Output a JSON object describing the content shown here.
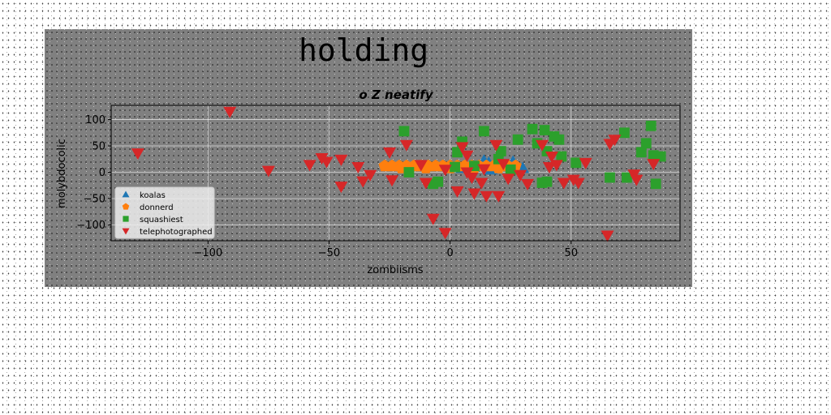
{
  "figure": {
    "suptitle": "holding"
  },
  "chart_data": {
    "type": "scatter",
    "title": "o Z neatify",
    "xlabel": "zombiisms",
    "ylabel": "molybdocolic",
    "xlim": [
      -140,
      95
    ],
    "ylim": [
      -130,
      127
    ],
    "xticks": [
      -100,
      -50,
      0,
      50
    ],
    "yticks": [
      -100,
      -50,
      0,
      50,
      100
    ],
    "grid": true,
    "legend_position": "lower-left",
    "series": [
      {
        "name": "koalas",
        "marker": "triangle-up",
        "color": "#1f77b4",
        "points": [
          [
            14,
            22
          ],
          [
            16,
            18
          ],
          [
            26,
            20
          ],
          [
            30,
            8
          ],
          [
            10,
            10
          ],
          [
            17,
            5
          ],
          [
            22,
            12
          ],
          [
            5,
            8
          ]
        ]
      },
      {
        "name": "donnerd",
        "marker": "pentagon",
        "color": "#ff7f0e",
        "points": [
          [
            -27,
            12
          ],
          [
            -24,
            12
          ],
          [
            -21,
            12
          ],
          [
            -18,
            12
          ],
          [
            -15,
            12
          ],
          [
            -12,
            12
          ],
          [
            -9,
            12
          ],
          [
            -6,
            12
          ],
          [
            -3,
            12
          ],
          [
            0,
            12
          ],
          [
            3,
            12
          ],
          [
            6,
            12
          ],
          [
            9,
            12
          ],
          [
            12,
            12
          ],
          [
            15,
            12
          ],
          [
            18,
            12
          ],
          [
            21,
            12
          ],
          [
            24,
            12
          ],
          [
            27,
            12
          ],
          [
            -20,
            8
          ],
          [
            -10,
            8
          ],
          [
            0,
            8
          ],
          [
            10,
            8
          ],
          [
            20,
            8
          ]
        ]
      },
      {
        "name": "squashiest",
        "marker": "square",
        "color": "#2ca02c",
        "points": [
          [
            -19,
            78
          ],
          [
            -17,
            0
          ],
          [
            -7,
            -22
          ],
          [
            -5,
            -18
          ],
          [
            2,
            10
          ],
          [
            3,
            38
          ],
          [
            5,
            58
          ],
          [
            10,
            12
          ],
          [
            14,
            78
          ],
          [
            20,
            25
          ],
          [
            21,
            40
          ],
          [
            25,
            5
          ],
          [
            28,
            62
          ],
          [
            34,
            82
          ],
          [
            36,
            55
          ],
          [
            39,
            80
          ],
          [
            40,
            40
          ],
          [
            43,
            68
          ],
          [
            45,
            62
          ],
          [
            46,
            30
          ],
          [
            38,
            -20
          ],
          [
            40,
            -18
          ],
          [
            52,
            18
          ],
          [
            66,
            -10
          ],
          [
            73,
            -10
          ],
          [
            79,
            38
          ],
          [
            81,
            55
          ],
          [
            83,
            88
          ],
          [
            84,
            32
          ],
          [
            85,
            -22
          ],
          [
            87,
            30
          ],
          [
            72,
            75
          ]
        ]
      },
      {
        "name": "telephotographed",
        "marker": "triangle-down",
        "color": "#d62728",
        "points": [
          [
            -129,
            36
          ],
          [
            -91,
            115
          ],
          [
            -75,
            3
          ],
          [
            -58,
            14
          ],
          [
            -53,
            27
          ],
          [
            -51,
            20
          ],
          [
            -45,
            -27
          ],
          [
            -45,
            24
          ],
          [
            -38,
            10
          ],
          [
            -36,
            -17
          ],
          [
            -33,
            -5
          ],
          [
            -25,
            38
          ],
          [
            -24,
            -15
          ],
          [
            -18,
            52
          ],
          [
            -12,
            14
          ],
          [
            -10,
            -20
          ],
          [
            -7,
            -88
          ],
          [
            -2,
            5
          ],
          [
            -2,
            -115
          ],
          [
            3,
            -36
          ],
          [
            5,
            48
          ],
          [
            7,
            32
          ],
          [
            7,
            0
          ],
          [
            9,
            -10
          ],
          [
            10,
            -40
          ],
          [
            13,
            -20
          ],
          [
            14,
            6
          ],
          [
            15,
            -45
          ],
          [
            19,
            52
          ],
          [
            20,
            -45
          ],
          [
            22,
            16
          ],
          [
            24,
            -12
          ],
          [
            29,
            -5
          ],
          [
            32,
            -22
          ],
          [
            38,
            52
          ],
          [
            41,
            10
          ],
          [
            42,
            30
          ],
          [
            44,
            14
          ],
          [
            47,
            -20
          ],
          [
            51,
            -14
          ],
          [
            53,
            -20
          ],
          [
            56,
            18
          ],
          [
            66,
            54
          ],
          [
            68,
            62
          ],
          [
            65,
            -120
          ],
          [
            76,
            -4
          ],
          [
            77,
            -14
          ],
          [
            84,
            16
          ]
        ]
      }
    ]
  }
}
